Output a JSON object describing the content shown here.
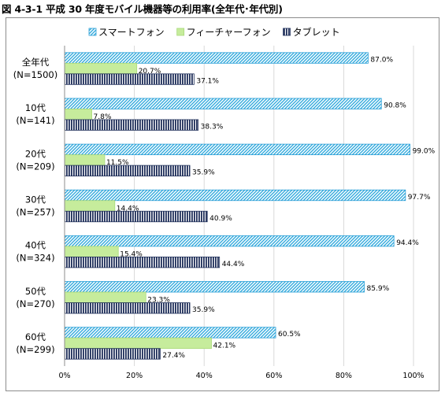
{
  "figure_title": "図 4-3-1  平成 30 年度モバイル機器等の利用率(全年代･年代別)",
  "chart_data": {
    "type": "bar",
    "orientation": "horizontal",
    "categories": [
      {
        "line1": "全年代",
        "line2": "(N=1500)"
      },
      {
        "line1": "10代",
        "line2": "(N=141)"
      },
      {
        "line1": "20代",
        "line2": "(N=209)"
      },
      {
        "line1": "30代",
        "line2": "(N=257)"
      },
      {
        "line1": "40代",
        "line2": "(N=324)"
      },
      {
        "line1": "50代",
        "line2": "(N=270)"
      },
      {
        "line1": "60代",
        "line2": "(N=299)"
      }
    ],
    "series": [
      {
        "name": "スマートフォン",
        "pattern": "diagonal",
        "color": "#33aadd",
        "values": [
          87.0,
          90.8,
          99.0,
          97.7,
          94.4,
          85.9,
          60.5
        ]
      },
      {
        "name": "フィーチャーフォン",
        "pattern": "solid",
        "color": "#c6ec9c",
        "values": [
          20.7,
          7.8,
          11.5,
          14.4,
          15.4,
          23.3,
          42.1
        ]
      },
      {
        "name": "タブレット",
        "pattern": "vertical",
        "color": "#1f2f5a",
        "values": [
          37.1,
          38.3,
          35.9,
          40.9,
          44.4,
          35.9,
          27.4
        ]
      }
    ],
    "value_format": "0.0%",
    "xlim": [
      0,
      100
    ],
    "x_ticks": [
      "0%",
      "20%",
      "40%",
      "60%",
      "80%",
      "100%"
    ],
    "grid": "vertical",
    "legend_position": "top"
  }
}
